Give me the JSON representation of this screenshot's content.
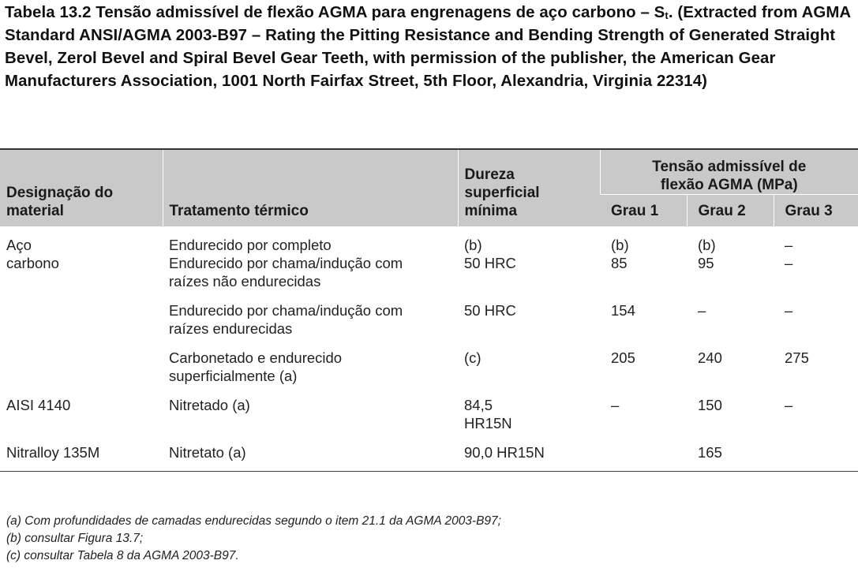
{
  "caption": {
    "main": "Tabela 13.2 Tensão admissível de flexão AGMA para engrenagens de aço carbono – S",
    "sub": "t",
    "rest": ". (Extracted from AGMA Standard ANSI/AGMA 2003-B97 – Rating the Pitting Resistance and Bending Strength of Generated Straight Bevel, Zerol Bevel and Spiral Bevel Gear Teeth, with permission of the publisher, the American Gear Manufacturers Association, 1001 North Fairfax Street, 5th Floor, Alexandria, Virginia 22314)"
  },
  "table": {
    "headers": {
      "material": "Designação do material",
      "treatment": "Tratamento térmico",
      "hardness": "Dureza superficial mínima",
      "stress_group": "Tensão admissível de flexão AGMA (MPa)",
      "grade1": "Grau 1",
      "grade2": "Grau 2",
      "grade3": "Grau 3"
    },
    "rows": [
      {
        "material": "Aço",
        "treatment": "Endurecido por completo",
        "hardness": "(b)",
        "g1": "(b)",
        "g2": "(b)",
        "g3": "–"
      },
      {
        "material": "carbono",
        "treatment": "Endurecido por chama/indução com raízes não endurecidas",
        "hardness": "50 HRC",
        "g1": "85",
        "g2": "95",
        "g3": "–"
      },
      {
        "material": "",
        "treatment": "Endurecido por chama/indução com raízes endurecidas",
        "hardness": "50 HRC",
        "g1": "154",
        "g2": "–",
        "g3": "–"
      },
      {
        "material": "",
        "treatment": "Carbonetado e endurecido superficialmente (a)",
        "hardness": "(c)",
        "g1": "205",
        "g2": "240",
        "g3": "275"
      },
      {
        "material": "AISI 4140",
        "treatment": "Nitretado (a)",
        "hardness": "84,5 HR15N",
        "g1": "–",
        "g2": "150",
        "g3": "–"
      },
      {
        "material": "Nitralloy 135M",
        "treatment": "Nitretato (a)",
        "hardness": "90,0 HR15N",
        "g1": "",
        "g2": "165",
        "g3": ""
      }
    ]
  },
  "notes": [
    "(a) Com profundidades de camadas endurecidas segundo o item 21.1 da AGMA 2003-B97;",
    "(b) consultar Figura 13.7;",
    "(c) consultar Tabela 8 da AGMA 2003-B97."
  ]
}
